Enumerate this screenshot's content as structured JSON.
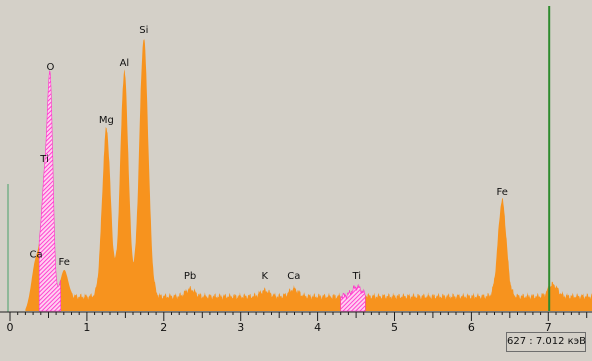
{
  "colors": {
    "background": "#d4d0c8",
    "spectrum_fill": "#f7931e",
    "overlap_hatch": "#ff33cc",
    "cursor_line": "#2e8b2e",
    "axis": "#202020"
  },
  "readout": {
    "text": "627 : 7.012 кэВ"
  },
  "chart_data": {
    "type": "area",
    "xlabel": "",
    "ylabel": "",
    "xlim": [
      -0.1,
      7.6
    ],
    "ylim": [
      0,
      1
    ],
    "x_ticks": [
      0,
      1,
      2,
      3,
      4,
      5,
      6,
      7
    ],
    "x_tick_labels": [
      "0",
      "1",
      "2",
      "3",
      "4",
      "5",
      "6",
      "7"
    ],
    "cursor_keV": 7.012,
    "baseline_level": 0.05,
    "baseline_start_keV": 0.2,
    "peaks": [
      {
        "label": "C",
        "energy_keV": 0.277,
        "height": 0.03,
        "sigma": 0.04,
        "labeled": false
      },
      {
        "label": "Ca",
        "energy_keV": 0.34,
        "height": 0.13,
        "sigma": 0.045
      },
      {
        "label": "Ti",
        "energy_keV": 0.45,
        "height": 0.38,
        "sigma": 0.045
      },
      {
        "label": "O",
        "energy_keV": 0.525,
        "height": 0.65,
        "sigma": 0.035
      },
      {
        "label": "Fe",
        "energy_keV": 0.705,
        "height": 0.09,
        "sigma": 0.05
      },
      {
        "label": "Mg",
        "energy_keV": 1.254,
        "height": 0.56,
        "sigma": 0.055
      },
      {
        "label": "Al",
        "energy_keV": 1.487,
        "height": 0.75,
        "sigma": 0.053
      },
      {
        "label": "Si",
        "energy_keV": 1.74,
        "height": 0.86,
        "sigma": 0.058
      },
      {
        "label": "Pb",
        "energy_keV": 2.342,
        "height": 0.025,
        "sigma": 0.06
      },
      {
        "label": "K",
        "energy_keV": 3.313,
        "height": 0.02,
        "sigma": 0.06
      },
      {
        "label": "Ca",
        "energy_keV": 3.69,
        "height": 0.025,
        "sigma": 0.06
      },
      {
        "label": "Ti",
        "energy_keV": 4.51,
        "height": 0.03,
        "sigma": 0.06
      },
      {
        "label": "Fe",
        "energy_keV": 6.4,
        "height": 0.32,
        "sigma": 0.055
      },
      {
        "label": "",
        "energy_keV": 7.06,
        "height": 0.04,
        "sigma": 0.06,
        "labeled": false
      }
    ],
    "overlap_regions": [
      {
        "element": "O",
        "from_keV": 0.38,
        "to_keV": 0.66
      },
      {
        "element": "Ti",
        "from_keV": 4.3,
        "to_keV": 4.62
      }
    ]
  }
}
